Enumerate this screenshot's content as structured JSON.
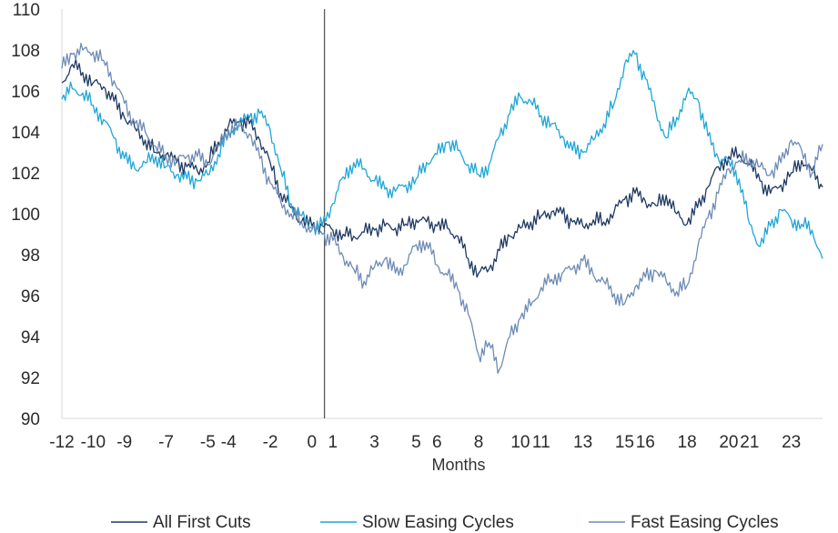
{
  "chart_data": {
    "type": "line",
    "title": "",
    "xlabel": "Months",
    "ylabel": "",
    "ylim": [
      90,
      110
    ],
    "xlim": [
      -12,
      24.5
    ],
    "y_ticks": [
      90,
      92,
      94,
      96,
      98,
      100,
      102,
      104,
      106,
      108,
      110
    ],
    "x_ticks": [
      {
        "x": -12,
        "label": "-12"
      },
      {
        "x": -10.5,
        "label": "-10"
      },
      {
        "x": -9,
        "label": "-9"
      },
      {
        "x": -7,
        "label": "-7"
      },
      {
        "x": -5,
        "label": "-5"
      },
      {
        "x": -4,
        "label": "-4"
      },
      {
        "x": -2,
        "label": "-2"
      },
      {
        "x": 0,
        "label": "0"
      },
      {
        "x": 1,
        "label": "1"
      },
      {
        "x": 3,
        "label": "3"
      },
      {
        "x": 5,
        "label": "5"
      },
      {
        "x": 6,
        "label": "6"
      },
      {
        "x": 8,
        "label": "8"
      },
      {
        "x": 10,
        "label": "10"
      },
      {
        "x": 11,
        "label": "11"
      },
      {
        "x": 13,
        "label": "13"
      },
      {
        "x": 15,
        "label": "15"
      },
      {
        "x": 16,
        "label": "16"
      },
      {
        "x": 18,
        "label": "18"
      },
      {
        "x": 20,
        "label": "20"
      },
      {
        "x": 21,
        "label": "21"
      },
      {
        "x": 23,
        "label": "23"
      }
    ],
    "vline_x": 0.6,
    "grid": false,
    "legend_position": "bottom",
    "series": [
      {
        "name": "All First Cuts",
        "color": "#1f3a63",
        "points": [
          [
            -12,
            106.4
          ],
          [
            -11.5,
            107.3
          ],
          [
            -11,
            106.9
          ],
          [
            -10.5,
            106.4
          ],
          [
            -10,
            106.2
          ],
          [
            -9.5,
            105.5
          ],
          [
            -9,
            104.7
          ],
          [
            -8.5,
            104.2
          ],
          [
            -8,
            103.6
          ],
          [
            -7.5,
            103.0
          ],
          [
            -7,
            102.9
          ],
          [
            -6.5,
            102.5
          ],
          [
            -6,
            102.3
          ],
          [
            -5.5,
            102.1
          ],
          [
            -5,
            102.5
          ],
          [
            -4.5,
            103.5
          ],
          [
            -4,
            104.3
          ],
          [
            -3.5,
            104.5
          ],
          [
            -3,
            104.4
          ],
          [
            -2.5,
            103.6
          ],
          [
            -2,
            102.5
          ],
          [
            -1.5,
            101.0
          ],
          [
            -1,
            100.3
          ],
          [
            -0.5,
            99.6
          ],
          [
            0,
            99.4
          ],
          [
            0.5,
            99.4
          ],
          [
            1,
            99.2
          ],
          [
            1.5,
            99.0
          ],
          [
            2,
            98.9
          ],
          [
            2.5,
            99.1
          ],
          [
            3,
            99.2
          ],
          [
            3.5,
            99.4
          ],
          [
            4,
            99.3
          ],
          [
            4.5,
            99.5
          ],
          [
            5,
            99.7
          ],
          [
            5.5,
            99.6
          ],
          [
            6,
            99.4
          ],
          [
            6.5,
            99.3
          ],
          [
            7,
            98.9
          ],
          [
            7.5,
            97.8
          ],
          [
            8,
            97.1
          ],
          [
            8.5,
            97.3
          ],
          [
            9,
            98.2
          ],
          [
            9.5,
            98.9
          ],
          [
            10,
            99.3
          ],
          [
            10.5,
            99.6
          ],
          [
            11,
            99.9
          ],
          [
            11.5,
            100.1
          ],
          [
            12,
            100.0
          ],
          [
            12.5,
            99.6
          ],
          [
            13,
            99.4
          ],
          [
            13.5,
            99.7
          ],
          [
            14,
            99.6
          ],
          [
            14.5,
            100.1
          ],
          [
            15,
            100.7
          ],
          [
            15.5,
            101.0
          ],
          [
            16,
            100.6
          ],
          [
            16.5,
            100.4
          ],
          [
            17,
            100.9
          ],
          [
            17.5,
            100.0
          ],
          [
            18,
            99.5
          ],
          [
            18.5,
            100.3
          ],
          [
            19,
            101.3
          ],
          [
            19.5,
            102.3
          ],
          [
            20,
            102.8
          ],
          [
            20.5,
            102.9
          ],
          [
            21,
            102.4
          ],
          [
            21.5,
            101.6
          ],
          [
            22,
            101.0
          ],
          [
            22.5,
            101.4
          ],
          [
            23,
            102.0
          ],
          [
            23.5,
            102.6
          ],
          [
            24,
            102.1
          ],
          [
            24.5,
            101.3
          ]
        ]
      },
      {
        "name": "Slow Easing Cycles",
        "color": "#1fa6d6",
        "points": [
          [
            -12,
            105.6
          ],
          [
            -11.5,
            106.1
          ],
          [
            -11,
            105.9
          ],
          [
            -10.5,
            105.3
          ],
          [
            -10,
            104.6
          ],
          [
            -9.5,
            103.7
          ],
          [
            -9,
            102.7
          ],
          [
            -8.5,
            102.2
          ],
          [
            -8,
            102.5
          ],
          [
            -7.5,
            102.8
          ],
          [
            -7,
            102.3
          ],
          [
            -6.5,
            101.9
          ],
          [
            -6,
            101.7
          ],
          [
            -5.5,
            101.6
          ],
          [
            -5,
            101.9
          ],
          [
            -4.5,
            102.9
          ],
          [
            -4,
            103.9
          ],
          [
            -3.5,
            104.4
          ],
          [
            -3,
            104.7
          ],
          [
            -2.5,
            104.9
          ],
          [
            -2,
            104.1
          ],
          [
            -1.5,
            102.2
          ],
          [
            -1,
            100.5
          ],
          [
            -0.5,
            99.9
          ],
          [
            0,
            99.3
          ],
          [
            0.5,
            99.4
          ],
          [
            1,
            100.5
          ],
          [
            1.5,
            101.8
          ],
          [
            2,
            102.5
          ],
          [
            2.5,
            102.2
          ],
          [
            3,
            101.6
          ],
          [
            3.5,
            101.2
          ],
          [
            4,
            101.1
          ],
          [
            4.5,
            101.4
          ],
          [
            5,
            101.7
          ],
          [
            5.5,
            102.5
          ],
          [
            6,
            102.9
          ],
          [
            6.5,
            103.5
          ],
          [
            7,
            103.1
          ],
          [
            7.5,
            102.4
          ],
          [
            8,
            101.9
          ],
          [
            8.5,
            102.4
          ],
          [
            9,
            103.8
          ],
          [
            9.5,
            104.9
          ],
          [
            10,
            105.7
          ],
          [
            10.5,
            105.5
          ],
          [
            11,
            104.8
          ],
          [
            11.5,
            104.4
          ],
          [
            12,
            103.8
          ],
          [
            12.5,
            103.1
          ],
          [
            13,
            103.0
          ],
          [
            13.5,
            103.6
          ],
          [
            14,
            104.4
          ],
          [
            14.5,
            105.4
          ],
          [
            15,
            107.3
          ],
          [
            15.5,
            107.8
          ],
          [
            16,
            106.6
          ],
          [
            16.5,
            105.0
          ],
          [
            17,
            103.7
          ],
          [
            17.5,
            104.7
          ],
          [
            18,
            105.9
          ],
          [
            18.5,
            105.6
          ],
          [
            19,
            103.8
          ],
          [
            19.5,
            102.7
          ],
          [
            20,
            102.6
          ],
          [
            20.5,
            101.7
          ],
          [
            21,
            99.5
          ],
          [
            21.5,
            98.4
          ],
          [
            22,
            99.4
          ],
          [
            22.5,
            100.2
          ],
          [
            23,
            99.7
          ],
          [
            23.5,
            99.5
          ],
          [
            24,
            99.2
          ],
          [
            24.5,
            97.8
          ]
        ]
      },
      {
        "name": "Fast Easing Cycles",
        "color": "#6d8bb5",
        "points": [
          [
            -12,
            107.1
          ],
          [
            -11.5,
            107.8
          ],
          [
            -11,
            108.0
          ],
          [
            -10.5,
            107.9
          ],
          [
            -10,
            107.5
          ],
          [
            -9.5,
            106.5
          ],
          [
            -9,
            105.4
          ],
          [
            -8.5,
            104.4
          ],
          [
            -8,
            104.0
          ],
          [
            -7.5,
            103.3
          ],
          [
            -7,
            102.8
          ],
          [
            -6.5,
            102.6
          ],
          [
            -6,
            102.8
          ],
          [
            -5.5,
            102.8
          ],
          [
            -5,
            102.4
          ],
          [
            -4.5,
            103.3
          ],
          [
            -4,
            104.1
          ],
          [
            -3.5,
            104.3
          ],
          [
            -3,
            103.9
          ],
          [
            -2.5,
            102.7
          ],
          [
            -2,
            101.5
          ],
          [
            -1.5,
            100.6
          ],
          [
            -1,
            100.0
          ],
          [
            -0.5,
            99.6
          ],
          [
            0,
            99.2
          ],
          [
            0.5,
            99.0
          ],
          [
            1,
            98.7
          ],
          [
            1.5,
            97.9
          ],
          [
            2,
            97.3
          ],
          [
            2.5,
            96.7
          ],
          [
            3,
            97.4
          ],
          [
            3.5,
            97.8
          ],
          [
            4,
            97.1
          ],
          [
            4.5,
            97.5
          ],
          [
            5,
            98.5
          ],
          [
            5.5,
            98.6
          ],
          [
            6,
            97.5
          ],
          [
            6.5,
            97.0
          ],
          [
            7,
            96.3
          ],
          [
            7.5,
            95.1
          ],
          [
            8,
            93.1
          ],
          [
            8.5,
            93.7
          ],
          [
            9,
            92.4
          ],
          [
            9.5,
            94.0
          ],
          [
            10,
            94.9
          ],
          [
            10.5,
            95.5
          ],
          [
            11,
            96.4
          ],
          [
            11.5,
            96.8
          ],
          [
            12,
            97.1
          ],
          [
            12.5,
            97.3
          ],
          [
            13,
            97.7
          ],
          [
            13.5,
            97.0
          ],
          [
            14,
            96.7
          ],
          [
            14.5,
            96.1
          ],
          [
            15,
            95.6
          ],
          [
            15.5,
            96.4
          ],
          [
            16,
            96.9
          ],
          [
            16.5,
            97.2
          ],
          [
            17,
            96.7
          ],
          [
            17.5,
            96.2
          ],
          [
            18,
            96.5
          ],
          [
            18.5,
            98.3
          ],
          [
            19,
            99.8
          ],
          [
            19.5,
            101.0
          ],
          [
            20,
            102.2
          ],
          [
            20.5,
            102.6
          ],
          [
            21,
            102.7
          ],
          [
            21.5,
            102.3
          ],
          [
            22,
            101.9
          ],
          [
            22.5,
            102.5
          ],
          [
            23,
            103.6
          ],
          [
            23.5,
            103.1
          ],
          [
            24,
            102.0
          ],
          [
            24.5,
            103.4
          ]
        ]
      }
    ]
  }
}
